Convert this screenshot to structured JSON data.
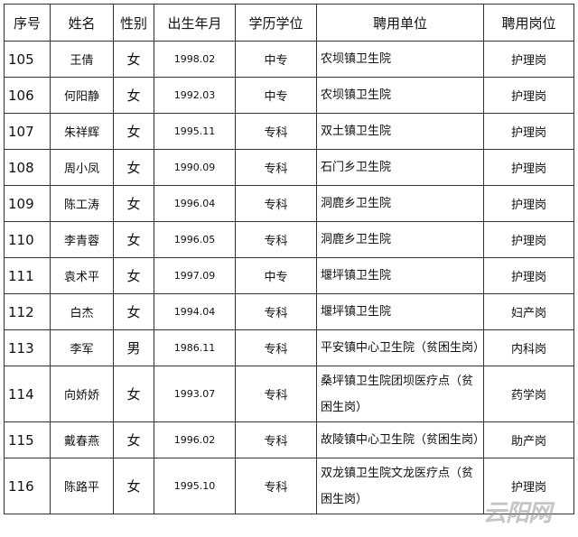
{
  "headers": [
    "序号",
    "姓名",
    "性别",
    "出生年月",
    "学历学位",
    "聘用单位",
    "聘用岗位"
  ],
  "rows": [
    [
      "105",
      "王倩",
      "女",
      "1998.02",
      "中专",
      "农坝镇卫生院",
      "护理岗"
    ],
    [
      "106",
      "何阳静",
      "女",
      "1992.03",
      "中专",
      "农坝镇卫生院",
      "护理岗"
    ],
    [
      "107",
      "朱祥辉",
      "女",
      "1995.11",
      "专科",
      "双土镇卫生院",
      "护理岗"
    ],
    [
      "108",
      "周小凤",
      "女",
      "1990.09",
      "专科",
      "石门乡卫生院",
      "护理岗"
    ],
    [
      "109",
      "陈工涛",
      "女",
      "1996.04",
      "专科",
      "洞鹿乡卫生院",
      "护理岗"
    ],
    [
      "110",
      "李青蓉",
      "女",
      "1996.05",
      "专科",
      "洞鹿乡卫生院",
      "护理岗"
    ],
    [
      "111",
      "袁术平",
      "女",
      "1997.09",
      "中专",
      "堰坪镇卫生院",
      "护理岗"
    ],
    [
      "112",
      "白杰",
      "女",
      "1994.04",
      "专科",
      "堰坪镇卫生院",
      "妇产岗"
    ],
    [
      "113",
      "李军",
      "男",
      "1986.11",
      "专科",
      "平安镇中心卫生院（贫困生岗）",
      "内科岗"
    ],
    [
      "114",
      "向娇娇",
      "女",
      "1993.07",
      "专科",
      "桑坪镇卫生院团坝医疗点（贫困生岗）",
      "药学岗"
    ],
    [
      "115",
      "戴春燕",
      "女",
      "1996.02",
      "专科",
      "故陵镇中心卫生院（贫困生岗）",
      "助产岗"
    ],
    [
      "116",
      "陈路平",
      "女",
      "1995.10",
      "专科",
      "双龙镇卫生院文龙医疗点（贫困生岗）",
      "护理岗"
    ]
  ],
  "watermark": "云阳网"
}
